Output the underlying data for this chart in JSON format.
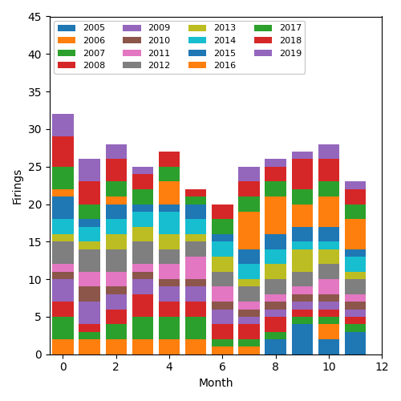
{
  "years": [
    2005,
    2006,
    2007,
    2008,
    2009,
    2010,
    2011,
    2012,
    2013,
    2014,
    2015,
    2016,
    2017,
    2018,
    2019
  ],
  "colors": {
    "2005": "#1f77b4",
    "2006": "#ff7f0e",
    "2007": "#2ca02c",
    "2008": "#d62728",
    "2009": "#9467bd",
    "2010": "#8c564b",
    "2011": "#e377c2",
    "2012": "#7f7f7f",
    "2013": "#bcbd22",
    "2014": "#17becf",
    "2015": "#1f77b4",
    "2016": "#ff7f0e",
    "2017": "#2ca02c",
    "2018": "#d62728",
    "2019": "#9467bd"
  },
  "data": {
    "2005": [
      0,
      0,
      0,
      0,
      0,
      0,
      0,
      0,
      2,
      4,
      2,
      3
    ],
    "2006": [
      2,
      2,
      2,
      2,
      2,
      2,
      1,
      1,
      0,
      0,
      2,
      0
    ],
    "2007": [
      3,
      1,
      2,
      3,
      3,
      3,
      1,
      1,
      1,
      1,
      1,
      1
    ],
    "2008": [
      2,
      1,
      2,
      3,
      2,
      2,
      2,
      2,
      2,
      1,
      1,
      1
    ],
    "2009": [
      3,
      3,
      2,
      2,
      2,
      2,
      2,
      1,
      1,
      1,
      1,
      1
    ],
    "2010": [
      1,
      2,
      1,
      1,
      1,
      1,
      1,
      1,
      1,
      1,
      1,
      1
    ],
    "2011": [
      1,
      2,
      2,
      1,
      2,
      3,
      2,
      1,
      1,
      1,
      2,
      1
    ],
    "2012": [
      3,
      3,
      3,
      3,
      2,
      2,
      2,
      2,
      2,
      2,
      2,
      2
    ],
    "2013": [
      1,
      1,
      2,
      2,
      2,
      1,
      2,
      1,
      2,
      3,
      2,
      1
    ],
    "2014": [
      2,
      2,
      2,
      2,
      3,
      2,
      2,
      2,
      2,
      1,
      1,
      2
    ],
    "2015": [
      3,
      1,
      2,
      1,
      1,
      2,
      1,
      2,
      2,
      2,
      2,
      1
    ],
    "2016": [
      1,
      0,
      1,
      0,
      3,
      0,
      0,
      5,
      5,
      3,
      4,
      4
    ],
    "2017": [
      3,
      2,
      2,
      2,
      2,
      1,
      2,
      2,
      2,
      2,
      2,
      2
    ],
    "2018": [
      4,
      3,
      3,
      2,
      2,
      1,
      2,
      2,
      2,
      4,
      3,
      2
    ],
    "2019": [
      3,
      3,
      2,
      1,
      0,
      0,
      0,
      2,
      1,
      1,
      2,
      1
    ]
  },
  "xlabel": "Month",
  "ylabel": "Firings",
  "ylim": [
    0,
    45
  ],
  "xlim": [
    -0.5,
    11.5
  ],
  "xticks": [
    0,
    2,
    4,
    6,
    8,
    10,
    12
  ]
}
